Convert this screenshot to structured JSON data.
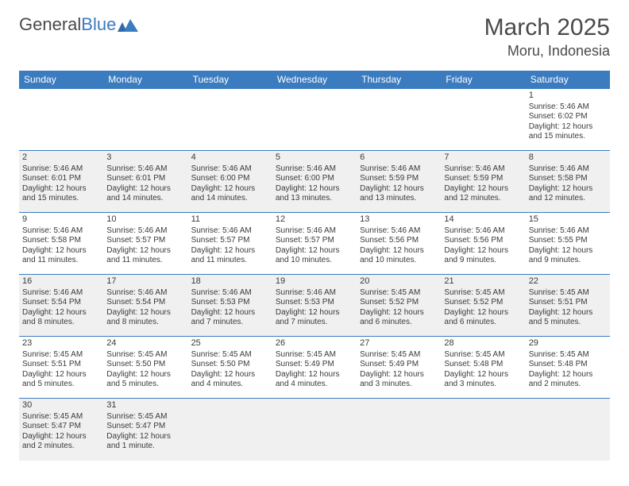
{
  "brand": {
    "part1": "General",
    "part2": "Blue",
    "accent_color": "#3b7bbf"
  },
  "title": "March 2025",
  "location": "Moru, Indonesia",
  "colors": {
    "header_bg": "#3b7bbf",
    "header_fg": "#ffffff",
    "row_alt_bg": "#f0f0f0",
    "row_bg": "#ffffff",
    "cell_border": "#3b7bbf",
    "text": "#3a3a3a"
  },
  "day_headers": [
    "Sunday",
    "Monday",
    "Tuesday",
    "Wednesday",
    "Thursday",
    "Friday",
    "Saturday"
  ],
  "weeks": [
    [
      null,
      null,
      null,
      null,
      null,
      null,
      {
        "n": "1",
        "sunrise": "5:46 AM",
        "sunset": "6:02 PM",
        "daylight": "12 hours and 15 minutes."
      }
    ],
    [
      {
        "n": "2",
        "sunrise": "5:46 AM",
        "sunset": "6:01 PM",
        "daylight": "12 hours and 15 minutes."
      },
      {
        "n": "3",
        "sunrise": "5:46 AM",
        "sunset": "6:01 PM",
        "daylight": "12 hours and 14 minutes."
      },
      {
        "n": "4",
        "sunrise": "5:46 AM",
        "sunset": "6:00 PM",
        "daylight": "12 hours and 14 minutes."
      },
      {
        "n": "5",
        "sunrise": "5:46 AM",
        "sunset": "6:00 PM",
        "daylight": "12 hours and 13 minutes."
      },
      {
        "n": "6",
        "sunrise": "5:46 AM",
        "sunset": "5:59 PM",
        "daylight": "12 hours and 13 minutes."
      },
      {
        "n": "7",
        "sunrise": "5:46 AM",
        "sunset": "5:59 PM",
        "daylight": "12 hours and 12 minutes."
      },
      {
        "n": "8",
        "sunrise": "5:46 AM",
        "sunset": "5:58 PM",
        "daylight": "12 hours and 12 minutes."
      }
    ],
    [
      {
        "n": "9",
        "sunrise": "5:46 AM",
        "sunset": "5:58 PM",
        "daylight": "12 hours and 11 minutes."
      },
      {
        "n": "10",
        "sunrise": "5:46 AM",
        "sunset": "5:57 PM",
        "daylight": "12 hours and 11 minutes."
      },
      {
        "n": "11",
        "sunrise": "5:46 AM",
        "sunset": "5:57 PM",
        "daylight": "12 hours and 11 minutes."
      },
      {
        "n": "12",
        "sunrise": "5:46 AM",
        "sunset": "5:57 PM",
        "daylight": "12 hours and 10 minutes."
      },
      {
        "n": "13",
        "sunrise": "5:46 AM",
        "sunset": "5:56 PM",
        "daylight": "12 hours and 10 minutes."
      },
      {
        "n": "14",
        "sunrise": "5:46 AM",
        "sunset": "5:56 PM",
        "daylight": "12 hours and 9 minutes."
      },
      {
        "n": "15",
        "sunrise": "5:46 AM",
        "sunset": "5:55 PM",
        "daylight": "12 hours and 9 minutes."
      }
    ],
    [
      {
        "n": "16",
        "sunrise": "5:46 AM",
        "sunset": "5:54 PM",
        "daylight": "12 hours and 8 minutes."
      },
      {
        "n": "17",
        "sunrise": "5:46 AM",
        "sunset": "5:54 PM",
        "daylight": "12 hours and 8 minutes."
      },
      {
        "n": "18",
        "sunrise": "5:46 AM",
        "sunset": "5:53 PM",
        "daylight": "12 hours and 7 minutes."
      },
      {
        "n": "19",
        "sunrise": "5:46 AM",
        "sunset": "5:53 PM",
        "daylight": "12 hours and 7 minutes."
      },
      {
        "n": "20",
        "sunrise": "5:45 AM",
        "sunset": "5:52 PM",
        "daylight": "12 hours and 6 minutes."
      },
      {
        "n": "21",
        "sunrise": "5:45 AM",
        "sunset": "5:52 PM",
        "daylight": "12 hours and 6 minutes."
      },
      {
        "n": "22",
        "sunrise": "5:45 AM",
        "sunset": "5:51 PM",
        "daylight": "12 hours and 5 minutes."
      }
    ],
    [
      {
        "n": "23",
        "sunrise": "5:45 AM",
        "sunset": "5:51 PM",
        "daylight": "12 hours and 5 minutes."
      },
      {
        "n": "24",
        "sunrise": "5:45 AM",
        "sunset": "5:50 PM",
        "daylight": "12 hours and 5 minutes."
      },
      {
        "n": "25",
        "sunrise": "5:45 AM",
        "sunset": "5:50 PM",
        "daylight": "12 hours and 4 minutes."
      },
      {
        "n": "26",
        "sunrise": "5:45 AM",
        "sunset": "5:49 PM",
        "daylight": "12 hours and 4 minutes."
      },
      {
        "n": "27",
        "sunrise": "5:45 AM",
        "sunset": "5:49 PM",
        "daylight": "12 hours and 3 minutes."
      },
      {
        "n": "28",
        "sunrise": "5:45 AM",
        "sunset": "5:48 PM",
        "daylight": "12 hours and 3 minutes."
      },
      {
        "n": "29",
        "sunrise": "5:45 AM",
        "sunset": "5:48 PM",
        "daylight": "12 hours and 2 minutes."
      }
    ],
    [
      {
        "n": "30",
        "sunrise": "5:45 AM",
        "sunset": "5:47 PM",
        "daylight": "12 hours and 2 minutes."
      },
      {
        "n": "31",
        "sunrise": "5:45 AM",
        "sunset": "5:47 PM",
        "daylight": "12 hours and 1 minute."
      },
      null,
      null,
      null,
      null,
      null
    ]
  ],
  "labels": {
    "sunrise": "Sunrise: ",
    "sunset": "Sunset: ",
    "daylight": "Daylight: "
  }
}
